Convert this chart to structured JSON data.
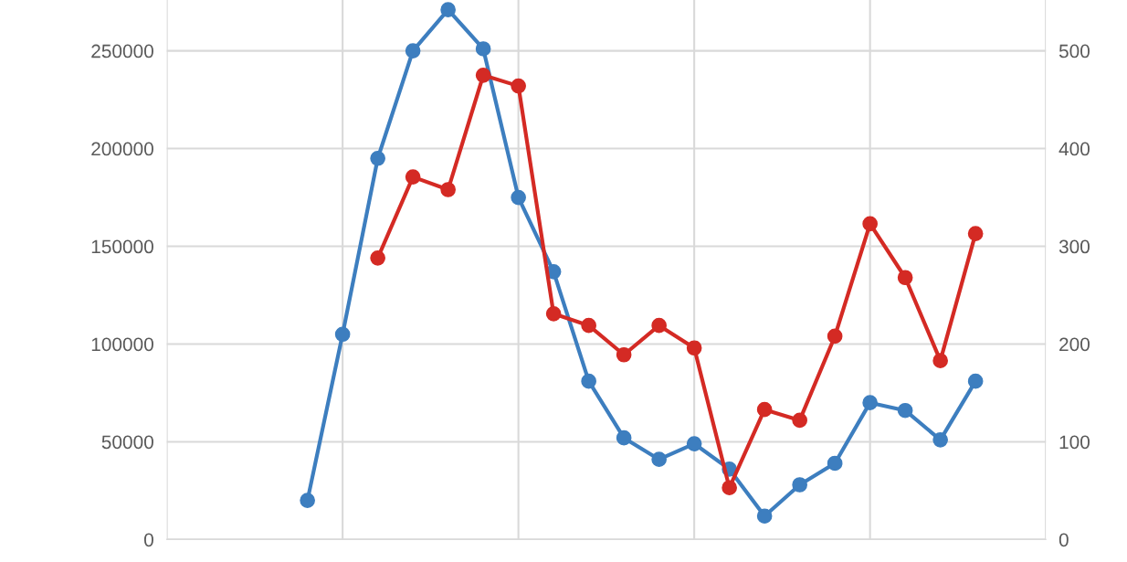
{
  "chart_data": {
    "type": "line",
    "categories": [
      null,
      null,
      null,
      null,
      null,
      null,
      null,
      null,
      null,
      null,
      null,
      null,
      null,
      null,
      null,
      null,
      null,
      null,
      null,
      null,
      null,
      null,
      null,
      null,
      null,
      null
    ],
    "ylim": [
      0,
      276000
    ],
    "yticks": [
      0,
      50000,
      100000,
      150000,
      200000,
      250000
    ],
    "y2lim": [
      0,
      552
    ],
    "y2ticks": [
      0,
      100,
      200,
      300,
      400,
      500
    ],
    "grid": true,
    "marker": "circle",
    "line_style": "solid",
    "series": [
      {
        "color": "#3d7ebf",
        "values": [
          null,
          null,
          null,
          null,
          20000,
          105000,
          195000,
          250000,
          271000,
          251000,
          175000,
          137000,
          81000,
          52000,
          41000,
          49000,
          36000,
          12000,
          28000,
          39000,
          70000,
          66000,
          51000,
          81000,
          null,
          null
        ]
      },
      {
        "color": "#d42a24",
        "axis": "y2",
        "values": [
          null,
          null,
          null,
          null,
          null,
          null,
          288,
          371,
          358,
          475,
          464,
          231,
          219,
          189,
          219,
          196,
          53,
          133,
          122,
          208,
          323,
          268,
          183,
          313,
          null,
          null
        ]
      }
    ]
  }
}
